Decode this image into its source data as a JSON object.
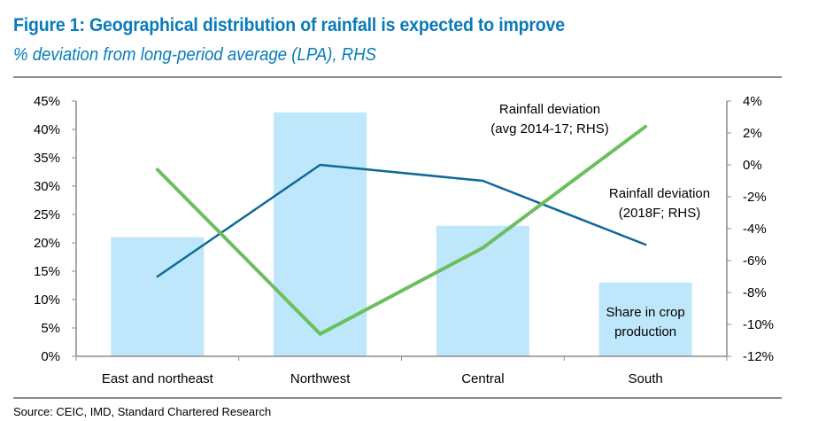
{
  "header": {
    "title": "Figure 1: Geographical distribution of rainfall is expected to improve",
    "subtitle": "% deviation from long-period average (LPA), RHS"
  },
  "footer": {
    "source": "Source: CEIC, IMD, Standard Chartered Research"
  },
  "colors": {
    "title": "#0a7bb8",
    "bar": "#bfe7fb",
    "line_avg": "#0d6a94",
    "line_2018": "#6bbf5e",
    "axis": "#8c8c8c"
  },
  "chart_data": {
    "type": "bar",
    "title": "Figure 1: Geographical distribution of rainfall is expected to improve",
    "subtitle": "% deviation from long-period average (LPA), RHS",
    "categories": [
      "East and northeast",
      "Northwest",
      "Central",
      "South"
    ],
    "left_axis": {
      "ylim": [
        0,
        45
      ],
      "ticks": [
        0,
        5,
        10,
        15,
        20,
        25,
        30,
        35,
        40,
        45
      ],
      "tick_labels": [
        "0%",
        "5%",
        "10%",
        "15%",
        "20%",
        "25%",
        "30%",
        "35%",
        "40%",
        "45%"
      ]
    },
    "right_axis": {
      "ylim": [
        -12,
        4
      ],
      "ticks": [
        -12,
        -10,
        -8,
        -6,
        -4,
        -2,
        0,
        2,
        4
      ],
      "tick_labels": [
        "-12%",
        "-10%",
        "-8%",
        "-6%",
        "-4%",
        "-2%",
        "0%",
        "2%",
        "4%"
      ]
    },
    "grid": false,
    "series": [
      {
        "name": "Share in crop production",
        "type": "bar",
        "axis": "left",
        "values": [
          21,
          43,
          23,
          13
        ],
        "annotation": [
          "Share in crop",
          "production"
        ]
      },
      {
        "name": "Rainfall deviation (avg 2014-17; RHS)",
        "type": "line",
        "axis": "right",
        "values": [
          -7.0,
          0.0,
          -1.0,
          -5.0
        ],
        "annotation": [
          "Rainfall deviation",
          "(avg 2014-17; RHS)"
        ]
      },
      {
        "name": "Rainfall deviation (2018F; RHS)",
        "type": "line",
        "axis": "right",
        "values": [
          -0.3,
          -10.6,
          -5.2,
          2.4
        ],
        "annotation": [
          "Rainfall deviation",
          "(2018F; RHS)"
        ]
      }
    ]
  }
}
